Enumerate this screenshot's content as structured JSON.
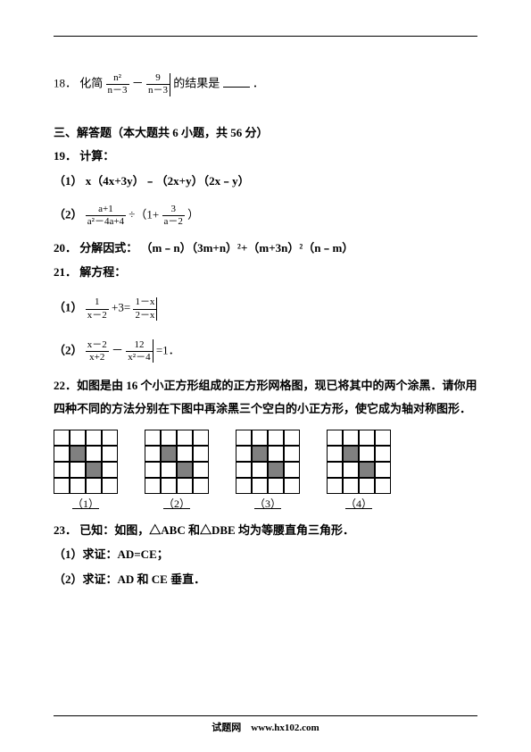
{
  "q18": {
    "num": "18．",
    "pre": "化简",
    "frac1_num": "n²",
    "frac1_den": "n－3",
    "minus": "－",
    "frac2_num": "9",
    "frac2_den": "n－3",
    "post": "的结果是",
    "period": "．"
  },
  "section3": "三、解答题（本大题共 6 小题，共 56 分）",
  "q19": {
    "num": "19．",
    "title": "计算：",
    "p1_label": "（1）",
    "p1": "x（4x+3y）﹣（2x+y）（2x﹣y）",
    "p2_label": "（2）",
    "p2_f1_num": "a+1",
    "p2_f1_den": "a²－4a+4",
    "p2_div": " ÷（1+",
    "p2_f2_num": "3",
    "p2_f2_den": "a－2",
    "p2_close": "）"
  },
  "q20": {
    "num": "20．",
    "title": "分解因式：",
    "expr": "（m﹣n）（3m+n）²+（m+3n）²（n﹣m）"
  },
  "q21": {
    "num": "21．",
    "title": "解方程：",
    "p1_label": "（1）",
    "p1_f1_num": "1",
    "p1_f1_den": "x－2",
    "p1_mid": "+3=",
    "p1_f2_num": "1－x",
    "p1_f2_den": "2－x",
    "p2_label": "（2）",
    "p2_f1_num": "x－2",
    "p2_f1_den": "x+2",
    "p2_minus": "－",
    "p2_f2_num": "12",
    "p2_f2_den": "x²－4",
    "p2_eq": "=1．"
  },
  "q22": {
    "num": "22．",
    "text": "如图是由 16 个小正方形组成的正方形网格图，现已将其中的两个涂黑．请你用四种不同的方法分别在下图中再涂黑三个空白的小正方形，使它成为轴对称图形．",
    "labels": [
      "（1）",
      "（2）",
      "（3）",
      "（4）"
    ],
    "grids": [
      [
        [
          0,
          0,
          0,
          0
        ],
        [
          0,
          1,
          0,
          0
        ],
        [
          0,
          0,
          1,
          0
        ],
        [
          0,
          0,
          0,
          0
        ]
      ],
      [
        [
          0,
          0,
          0,
          0
        ],
        [
          0,
          1,
          0,
          0
        ],
        [
          0,
          0,
          1,
          0
        ],
        [
          0,
          0,
          0,
          0
        ]
      ],
      [
        [
          0,
          0,
          0,
          0
        ],
        [
          0,
          1,
          0,
          0
        ],
        [
          0,
          0,
          1,
          0
        ],
        [
          0,
          0,
          0,
          0
        ]
      ],
      [
        [
          0,
          0,
          0,
          0
        ],
        [
          0,
          1,
          0,
          0
        ],
        [
          0,
          0,
          1,
          0
        ],
        [
          0,
          0,
          0,
          0
        ]
      ]
    ]
  },
  "q23": {
    "num": "23．",
    "title": "已知：如图，△ABC 和△DBE 均为等腰直角三角形．",
    "p1": "（1）求证：AD=CE；",
    "p2": "（2）求证：AD 和 CE 垂直．"
  },
  "footer": "试题网　www.hx102.com"
}
